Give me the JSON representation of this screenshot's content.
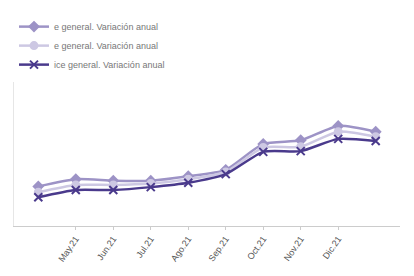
{
  "chart_data": {
    "type": "line",
    "categories": [
      null,
      "May.21",
      "Jun.21",
      "Jul.21",
      "Ago.21",
      "Sep.21",
      "Oct.21",
      "Nov.21",
      "Dic.21",
      null
    ],
    "series": [
      {
        "name": "e general. Variación anual",
        "color": "#9d93c6",
        "marker": "diamond",
        "values": [
          2.25,
          2.75,
          2.65,
          2.65,
          2.95,
          3.4,
          5.2,
          5.45,
          6.45,
          6.05
        ]
      },
      {
        "name": "e general. Variación anual",
        "color": "#cdc8e3",
        "marker": "circle",
        "values": [
          1.85,
          2.35,
          2.35,
          2.45,
          2.75,
          3.25,
          4.95,
          5.0,
          6.05,
          5.7
        ]
      },
      {
        "name": "ice general. Variación anual",
        "color": "#4a3a8c",
        "marker": "x",
        "values": [
          1.5,
          2.0,
          2.0,
          2.2,
          2.5,
          3.1,
          4.65,
          4.7,
          5.55,
          5.4
        ]
      }
    ],
    "ylim": [
      -0.5,
      9.5
    ],
    "grid": false,
    "legend": "top left",
    "tick_labels": "x"
  }
}
